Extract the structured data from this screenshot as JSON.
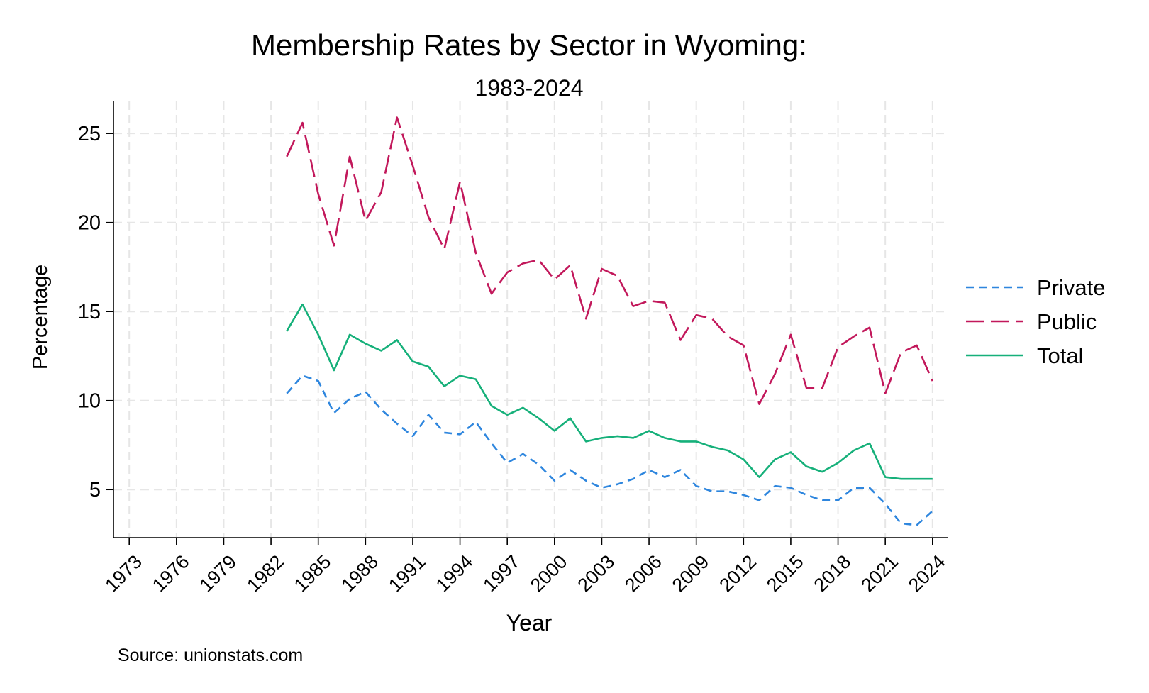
{
  "chart_data": {
    "type": "line",
    "title": "Membership Rates by Sector in Wyoming:",
    "subtitle": "1983-2024",
    "xlabel": "Year",
    "ylabel": "Percentage",
    "source": "Source: unionstats.com",
    "xlim": [
      1972,
      2025
    ],
    "ylim": [
      2.3,
      26.8
    ],
    "x_ticks": [
      1973,
      1976,
      1979,
      1982,
      1985,
      1988,
      1991,
      1994,
      1997,
      2000,
      2003,
      2006,
      2009,
      2012,
      2015,
      2018,
      2021,
      2024
    ],
    "x_tick_labels": [
      "1973",
      "1976",
      "1979",
      "1982",
      "1985",
      "1988",
      "1991",
      "1994",
      "1997",
      "2000",
      "2003",
      "2006",
      "2009",
      "2012",
      "2015",
      "2018",
      "2021",
      "2024"
    ],
    "y_ticks": [
      5,
      10,
      15,
      20,
      25
    ],
    "y_tick_labels": [
      "5",
      "10",
      "15",
      "20",
      "25"
    ],
    "grid": true,
    "legend_position": "right",
    "x": [
      1983,
      1984,
      1985,
      1986,
      1987,
      1988,
      1989,
      1990,
      1991,
      1992,
      1993,
      1994,
      1995,
      1996,
      1997,
      1998,
      1999,
      2000,
      2001,
      2002,
      2003,
      2004,
      2005,
      2006,
      2007,
      2008,
      2009,
      2010,
      2011,
      2012,
      2013,
      2014,
      2015,
      2016,
      2017,
      2018,
      2019,
      2020,
      2021,
      2022,
      2023,
      2024
    ],
    "series": [
      {
        "name": "Private",
        "color": "#2e86de",
        "dash": "short",
        "values": [
          10.4,
          11.4,
          11.1,
          9.3,
          10.1,
          10.5,
          9.5,
          8.7,
          8.0,
          9.2,
          8.2,
          8.1,
          8.8,
          7.6,
          6.5,
          7.0,
          6.4,
          5.5,
          6.1,
          5.5,
          5.1,
          5.3,
          5.6,
          6.1,
          5.7,
          6.1,
          5.2,
          4.9,
          4.9,
          4.7,
          4.4,
          5.2,
          5.1,
          4.7,
          4.4,
          4.4,
          5.1,
          5.1,
          4.2,
          3.1,
          3.0,
          3.8
        ]
      },
      {
        "name": "Public",
        "color": "#c2185b",
        "dash": "long",
        "values": [
          23.7,
          25.6,
          21.6,
          18.7,
          23.7,
          20.1,
          21.7,
          25.9,
          23.2,
          20.3,
          18.5,
          22.3,
          18.3,
          16.0,
          17.2,
          17.7,
          17.9,
          16.8,
          17.6,
          14.6,
          17.4,
          17.0,
          15.3,
          15.6,
          15.5,
          13.4,
          14.8,
          14.6,
          13.6,
          13.1,
          9.8,
          11.5,
          13.7,
          10.7,
          10.7,
          13.0,
          13.6,
          14.1,
          10.4,
          12.7,
          13.1,
          11.1
        ]
      },
      {
        "name": "Total",
        "color": "#16b07a",
        "dash": "solid",
        "values": [
          13.9,
          15.4,
          13.7,
          11.7,
          13.7,
          13.2,
          12.8,
          13.4,
          12.2,
          11.9,
          10.8,
          11.4,
          11.2,
          9.7,
          9.2,
          9.6,
          9.0,
          8.3,
          9.0,
          7.7,
          7.9,
          8.0,
          7.9,
          8.3,
          7.9,
          7.7,
          7.7,
          7.4,
          7.2,
          6.7,
          5.7,
          6.7,
          7.1,
          6.3,
          6.0,
          6.5,
          7.2,
          7.6,
          5.7,
          5.6,
          5.6,
          5.6
        ]
      }
    ]
  }
}
